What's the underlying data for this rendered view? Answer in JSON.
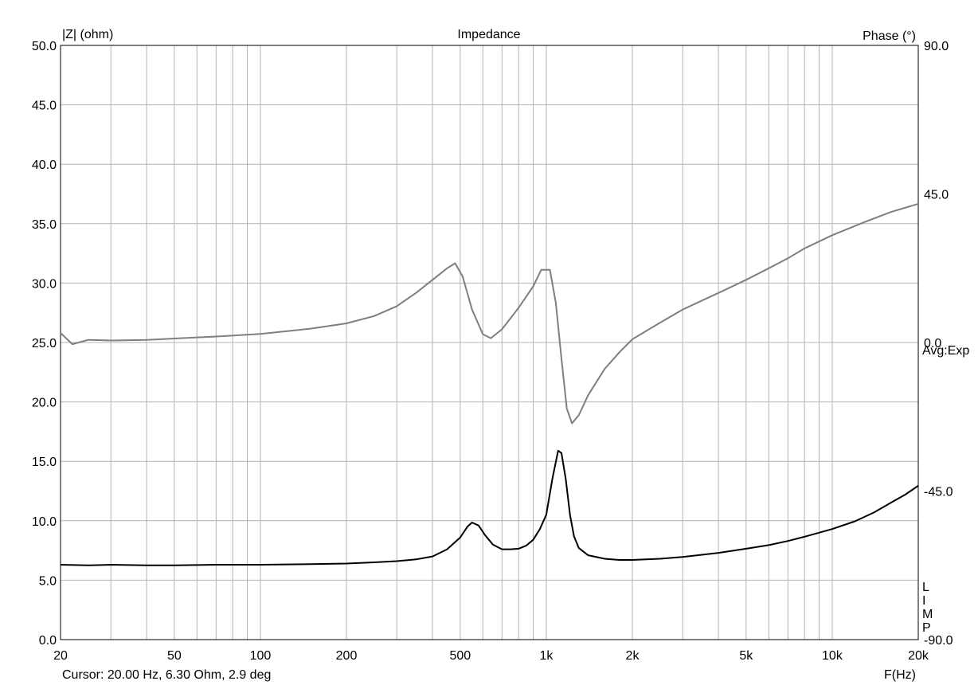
{
  "chart_data": {
    "type": "line",
    "title": "Impedance",
    "ylabel_left": "|Z| (ohm)",
    "ylabel_right": "Phase (°)",
    "xlabel": "F(Hz)",
    "x_scale": "log",
    "xlim": [
      20,
      20000
    ],
    "ylim_left": [
      0,
      50
    ],
    "ylim_right": [
      -90,
      90
    ],
    "x_ticks": [
      {
        "value": 20,
        "label": "20"
      },
      {
        "value": 50,
        "label": "50"
      },
      {
        "value": 100,
        "label": "100"
      },
      {
        "value": 200,
        "label": "200"
      },
      {
        "value": 500,
        "label": "500"
      },
      {
        "value": 1000,
        "label": "1k"
      },
      {
        "value": 2000,
        "label": "2k"
      },
      {
        "value": 5000,
        "label": "5k"
      },
      {
        "value": 10000,
        "label": "10k"
      },
      {
        "value": 20000,
        "label": "20k"
      }
    ],
    "y_ticks_left": [
      "0.0",
      "5.0",
      "10.0",
      "15.0",
      "20.0",
      "25.0",
      "30.0",
      "35.0",
      "40.0",
      "45.0",
      "50.0"
    ],
    "y_ticks_right": [
      {
        "value": 90,
        "label": "90.0"
      },
      {
        "value": 45,
        "label": "45.0"
      },
      {
        "value": 0,
        "label": "0.0"
      },
      {
        "value": -45,
        "label": "-45.0"
      },
      {
        "value": -90,
        "label": "-90.0"
      }
    ],
    "grid": true,
    "annotations": {
      "averaging": "Avg:Exp",
      "series_tag": [
        "L",
        "I",
        "M",
        "P"
      ]
    },
    "cursor_readout": "Cursor: 20.00 Hz, 6.30 Ohm, 2.9 deg",
    "series": [
      {
        "axis": "left",
        "color": "#000000",
        "points": [
          [
            20,
            6.3
          ],
          [
            25,
            6.25
          ],
          [
            30,
            6.3
          ],
          [
            40,
            6.25
          ],
          [
            50,
            6.25
          ],
          [
            70,
            6.3
          ],
          [
            100,
            6.3
          ],
          [
            150,
            6.35
          ],
          [
            200,
            6.4
          ],
          [
            250,
            6.5
          ],
          [
            300,
            6.6
          ],
          [
            350,
            6.75
          ],
          [
            400,
            7.0
          ],
          [
            450,
            7.6
          ],
          [
            500,
            8.6
          ],
          [
            530,
            9.5
          ],
          [
            550,
            9.85
          ],
          [
            580,
            9.6
          ],
          [
            610,
            8.8
          ],
          [
            650,
            8.0
          ],
          [
            700,
            7.6
          ],
          [
            750,
            7.6
          ],
          [
            800,
            7.65
          ],
          [
            850,
            7.9
          ],
          [
            900,
            8.4
          ],
          [
            950,
            9.3
          ],
          [
            1000,
            10.5
          ],
          [
            1050,
            13.5
          ],
          [
            1100,
            15.9
          ],
          [
            1130,
            15.7
          ],
          [
            1170,
            13.5
          ],
          [
            1210,
            10.5
          ],
          [
            1250,
            8.7
          ],
          [
            1300,
            7.7
          ],
          [
            1400,
            7.1
          ],
          [
            1600,
            6.8
          ],
          [
            1800,
            6.7
          ],
          [
            2000,
            6.7
          ],
          [
            2500,
            6.8
          ],
          [
            3000,
            6.95
          ],
          [
            4000,
            7.3
          ],
          [
            5000,
            7.65
          ],
          [
            6000,
            7.95
          ],
          [
            7000,
            8.3
          ],
          [
            8000,
            8.65
          ],
          [
            10000,
            9.3
          ],
          [
            12000,
            9.95
          ],
          [
            14000,
            10.7
          ],
          [
            16000,
            11.5
          ],
          [
            18000,
            12.2
          ],
          [
            20000,
            12.95
          ]
        ]
      },
      {
        "axis": "right",
        "color": "#7f7f7f",
        "points": [
          [
            20,
            2.9
          ],
          [
            22,
            -0.5
          ],
          [
            25,
            0.8
          ],
          [
            30,
            0.6
          ],
          [
            40,
            0.8
          ],
          [
            50,
            1.2
          ],
          [
            70,
            1.8
          ],
          [
            100,
            2.6
          ],
          [
            150,
            4.2
          ],
          [
            200,
            5.8
          ],
          [
            250,
            8.0
          ],
          [
            300,
            11.0
          ],
          [
            350,
            15.0
          ],
          [
            400,
            19.0
          ],
          [
            450,
            22.5
          ],
          [
            480,
            24.0
          ],
          [
            510,
            20.0
          ],
          [
            550,
            10.0
          ],
          [
            600,
            2.5
          ],
          [
            640,
            1.3
          ],
          [
            700,
            4.0
          ],
          [
            800,
            10.5
          ],
          [
            900,
            17.0
          ],
          [
            960,
            22.0
          ],
          [
            1030,
            22.0
          ],
          [
            1080,
            12.0
          ],
          [
            1130,
            -5.0
          ],
          [
            1180,
            -20.0
          ],
          [
            1230,
            -24.5
          ],
          [
            1300,
            -22.0
          ],
          [
            1400,
            -16.0
          ],
          [
            1600,
            -8.0
          ],
          [
            1800,
            -3.0
          ],
          [
            2000,
            1.0
          ],
          [
            2500,
            6.0
          ],
          [
            3000,
            10.0
          ],
          [
            4000,
            15.0
          ],
          [
            5000,
            19.0
          ],
          [
            6000,
            22.5
          ],
          [
            7000,
            25.5
          ],
          [
            8000,
            28.5
          ],
          [
            10000,
            32.5
          ],
          [
            13000,
            36.5
          ],
          [
            16000,
            39.5
          ],
          [
            20000,
            42.0
          ]
        ]
      }
    ]
  }
}
